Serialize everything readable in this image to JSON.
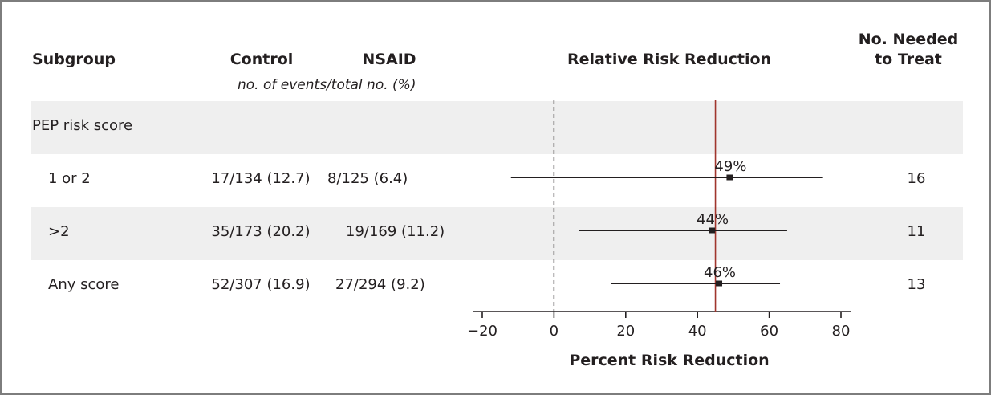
{
  "headers": {
    "subgroup": "Subgroup",
    "control": "Control",
    "nsaid": "NSAID",
    "units": "no. of events/total no. (%)",
    "rrr": "Relative Risk Reduction",
    "nnt_line1": "No. Needed",
    "nnt_line2": "to Treat"
  },
  "section_label": "PEP risk score",
  "rows": [
    {
      "label": "1 or 2",
      "control": "17/134 (12.7)",
      "nsaid": "8/125 (6.4)",
      "nnt": "16"
    },
    {
      "label": ">2",
      "control": "35/173 (20.2)",
      "nsaid": "19/169 (11.2)",
      "nnt": "11"
    },
    {
      "label": "Any score",
      "control": "52/307 (16.9)",
      "nsaid": "27/294 (9.2)",
      "nnt": "13"
    }
  ],
  "colors": {
    "band": "#efefef",
    "reference_line": "#a0352d",
    "ink": "#231f20",
    "frame": "#7d7d7d"
  },
  "chart_data": {
    "type": "forest",
    "xlabel": "Percent Risk Reduction",
    "xlim": [
      -20,
      80
    ],
    "xticks": [
      -20,
      0,
      20,
      40,
      60,
      80
    ],
    "xtick_labels": [
      "−20",
      "0",
      "20",
      "40",
      "60",
      "80"
    ],
    "null_line": 0,
    "overall_line": 45,
    "estimates": [
      {
        "row": "1 or 2",
        "point": 49,
        "lower": -12,
        "upper": 75,
        "label": "49%"
      },
      {
        "row": ">2",
        "point": 44,
        "lower": 7,
        "upper": 65,
        "label": "44%"
      },
      {
        "row": "Any score",
        "point": 46,
        "lower": 16,
        "upper": 63,
        "label": "46%"
      }
    ]
  }
}
